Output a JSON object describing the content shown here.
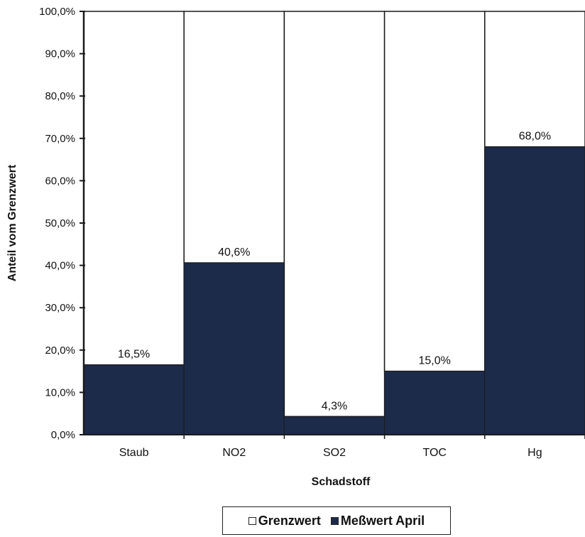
{
  "chart_data": {
    "type": "bar",
    "stacked": true,
    "categories": [
      "Staub",
      "NO2",
      "SO2",
      "TOC",
      "Hg"
    ],
    "series": [
      {
        "name": "Meßwert April",
        "values": [
          16.5,
          40.6,
          4.3,
          15.0,
          68.0
        ],
        "color": "#1c2b4a"
      },
      {
        "name": "Grenzwert",
        "values": [
          83.5,
          59.4,
          95.7,
          85.0,
          32.0
        ],
        "color": "#ffffff"
      }
    ],
    "data_labels": [
      "16,5%",
      "40,6%",
      "4,3%",
      "15,0%",
      "68,0%"
    ],
    "y_ticks": [
      0,
      10,
      20,
      30,
      40,
      50,
      60,
      70,
      80,
      90,
      100
    ],
    "y_tick_labels": [
      "0,0%",
      "10,0%",
      "20,0%",
      "30,0%",
      "40,0%",
      "50,0%",
      "60,0%",
      "70,0%",
      "80,0%",
      "90,0%",
      "100,0%"
    ],
    "ylim": [
      0,
      100
    ],
    "xlabel": "Schadstoff",
    "ylabel": "Anteil vom Grenzwert",
    "grid": false,
    "legend_position": "bottom"
  },
  "legend": {
    "items": [
      {
        "label": "Grenzwert",
        "icon": "open-square"
      },
      {
        "label": "Meßwert April",
        "icon": "filled-square"
      }
    ]
  }
}
